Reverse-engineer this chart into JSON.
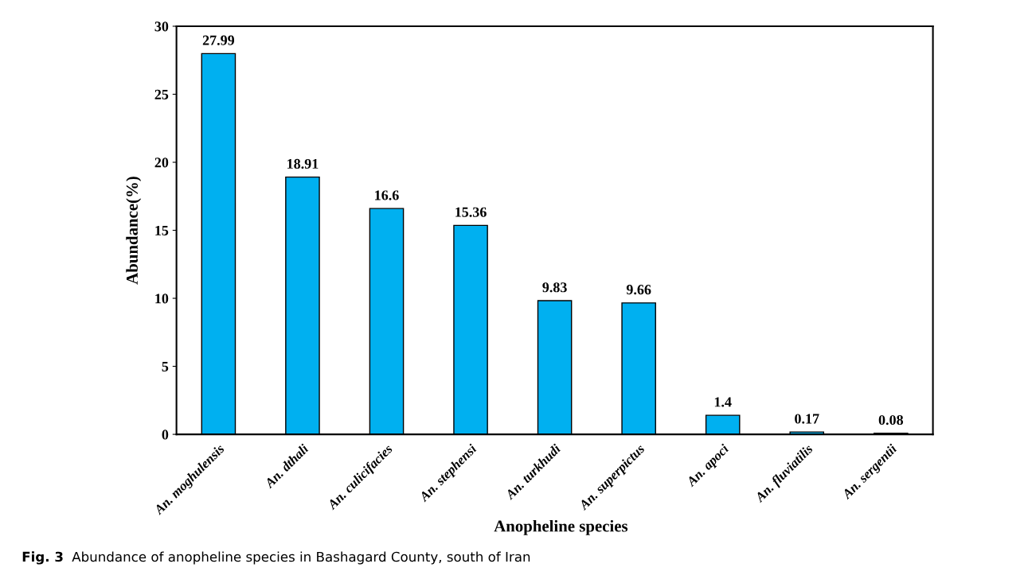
{
  "chart_data": {
    "type": "bar",
    "xlabel": "Anopheline species",
    "ylabel": "Abundance(%)",
    "categories": [
      "An. moghulensis",
      "An. dthali",
      "An. culicifacies",
      "An. stephensi",
      "An. turkhudi",
      "An. superpictus",
      "An. apoci",
      "An. fluviatilis",
      "An. sergentii"
    ],
    "values": [
      27.99,
      18.91,
      16.6,
      15.36,
      9.83,
      9.66,
      1.4,
      0.17,
      0.08
    ],
    "color": "#00b0f0",
    "data_labels": true,
    "ylim": [
      0,
      30
    ],
    "yticks": [
      0,
      5,
      10,
      15,
      20,
      25,
      30
    ],
    "grid": false,
    "legend": false,
    "annotations": [
      "Fig. 3",
      "Abundance of anopheline species in Bashagard County, south of Iran"
    ]
  }
}
